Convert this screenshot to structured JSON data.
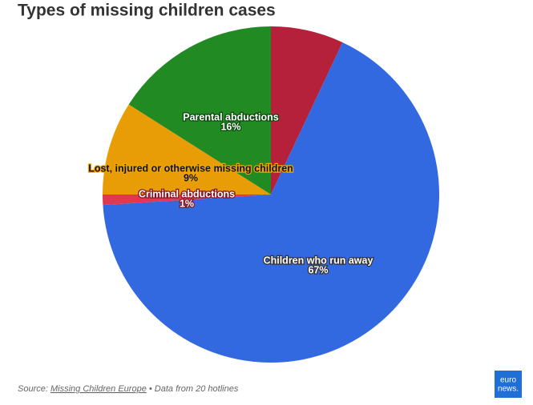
{
  "chart_data": {
    "type": "pie",
    "title": "Types of missing children cases",
    "categories": [
      null,
      "Children who run away",
      "Criminal abductions",
      "Lost, injured or otherwise missing children",
      "Parental abductions"
    ],
    "values": [
      7,
      67,
      1,
      9,
      16
    ],
    "value_labels": [
      null,
      "67%",
      "1%",
      "9%",
      "16%"
    ],
    "colors": [
      "#b5213a",
      "#3369e0",
      "#e0384f",
      "#e89c05",
      "#218a23"
    ],
    "source_prefix": "Source:",
    "source_link": "Missing Children Europe",
    "source_suffix": "• Data from 20 hotlines",
    "logo": [
      "euro",
      "news."
    ]
  }
}
